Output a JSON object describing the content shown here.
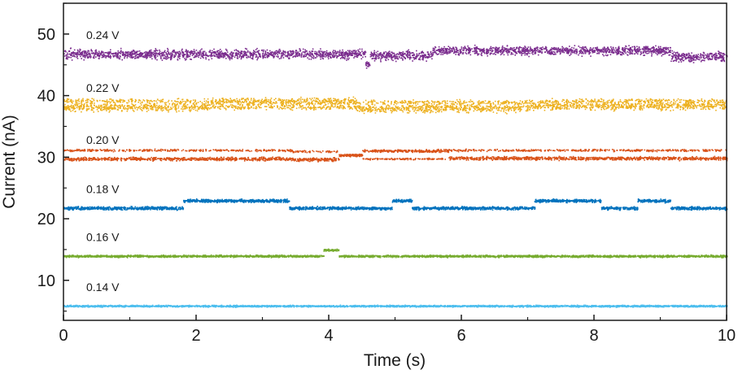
{
  "chart_data": {
    "type": "scatter",
    "xlabel": "Time (s)",
    "ylabel": "Current (nA)",
    "xlim": [
      0,
      10
    ],
    "ylim": [
      3.5,
      55
    ],
    "xticks": [
      "0",
      "2",
      "4",
      "6",
      "8",
      "10"
    ],
    "yticks": [
      "10",
      "20",
      "30",
      "40",
      "50"
    ],
    "grid": false,
    "legend": "inline labels above each trace",
    "series": [
      {
        "name": "0.24 V",
        "color": "#7B2D8E",
        "segments": [
          {
            "x0": 0.0,
            "x1": 4.55,
            "y": 46.8,
            "spread": 1.1
          },
          {
            "x0": 4.55,
            "x1": 4.62,
            "y": 45.2,
            "spread": 0.9
          },
          {
            "x0": 4.62,
            "x1": 5.55,
            "y": 46.6,
            "spread": 1.1
          },
          {
            "x0": 5.55,
            "x1": 9.15,
            "y": 47.4,
            "spread": 1.0
          },
          {
            "x0": 9.15,
            "x1": 10.0,
            "y": 46.4,
            "spread": 1.1
          }
        ]
      },
      {
        "name": "0.22 V",
        "color": "#EDB120",
        "segments": [
          {
            "x0": 0.0,
            "x1": 2.2,
            "y": 38.2,
            "spread": 0.9,
            "alt": 39.2
          },
          {
            "x0": 2.2,
            "x1": 4.4,
            "y": 39.1,
            "spread": 0.9,
            "alt": 38.2
          },
          {
            "x0": 4.4,
            "x1": 7.0,
            "y": 38.0,
            "spread": 0.9,
            "alt": 39.0
          },
          {
            "x0": 7.0,
            "x1": 10.0,
            "y": 38.4,
            "spread": 0.9,
            "alt": 39.2
          }
        ]
      },
      {
        "name": "0.20 V",
        "color": "#D95319",
        "segments": [
          {
            "x0": 0.0,
            "x1": 3.45,
            "y": 29.8,
            "spread": 0.4,
            "alt": 31.2
          },
          {
            "x0": 3.45,
            "x1": 4.15,
            "y": 29.7,
            "spread": 0.4,
            "alt": 31.0
          },
          {
            "x0": 4.15,
            "x1": 4.5,
            "y": 30.4,
            "spread": 0.3
          },
          {
            "x0": 4.5,
            "x1": 5.8,
            "y": 31.1,
            "spread": 0.3,
            "alt": 29.8
          },
          {
            "x0": 5.8,
            "x1": 10.0,
            "y": 29.9,
            "spread": 0.4,
            "alt": 31.2
          }
        ]
      },
      {
        "name": "0.18 V",
        "color": "#0072BD",
        "segments": [
          {
            "x0": 0.0,
            "x1": 1.8,
            "y": 21.8,
            "spread": 0.35
          },
          {
            "x0": 1.8,
            "x1": 3.4,
            "y": 23.0,
            "spread": 0.35
          },
          {
            "x0": 3.4,
            "x1": 4.95,
            "y": 21.8,
            "spread": 0.35
          },
          {
            "x0": 4.95,
            "x1": 5.25,
            "y": 23.0,
            "spread": 0.35
          },
          {
            "x0": 5.25,
            "x1": 7.1,
            "y": 21.8,
            "spread": 0.35
          },
          {
            "x0": 7.1,
            "x1": 8.1,
            "y": 23.0,
            "spread": 0.35
          },
          {
            "x0": 8.1,
            "x1": 8.65,
            "y": 21.8,
            "spread": 0.35
          },
          {
            "x0": 8.65,
            "x1": 9.15,
            "y": 23.0,
            "spread": 0.35
          },
          {
            "x0": 9.15,
            "x1": 10.0,
            "y": 21.8,
            "spread": 0.35
          }
        ]
      },
      {
        "name": "0.16 V",
        "color": "#77AC30",
        "segments": [
          {
            "x0": 0.0,
            "x1": 3.92,
            "y": 14.0,
            "spread": 0.25
          },
          {
            "x0": 3.92,
            "x1": 4.15,
            "y": 15.0,
            "spread": 0.25
          },
          {
            "x0": 4.15,
            "x1": 10.0,
            "y": 14.0,
            "spread": 0.25
          }
        ]
      },
      {
        "name": "0.14 V",
        "color": "#4DBEEE",
        "segments": [
          {
            "x0": 0.0,
            "x1": 10.0,
            "y": 5.9,
            "spread": 0.2
          }
        ]
      }
    ]
  }
}
